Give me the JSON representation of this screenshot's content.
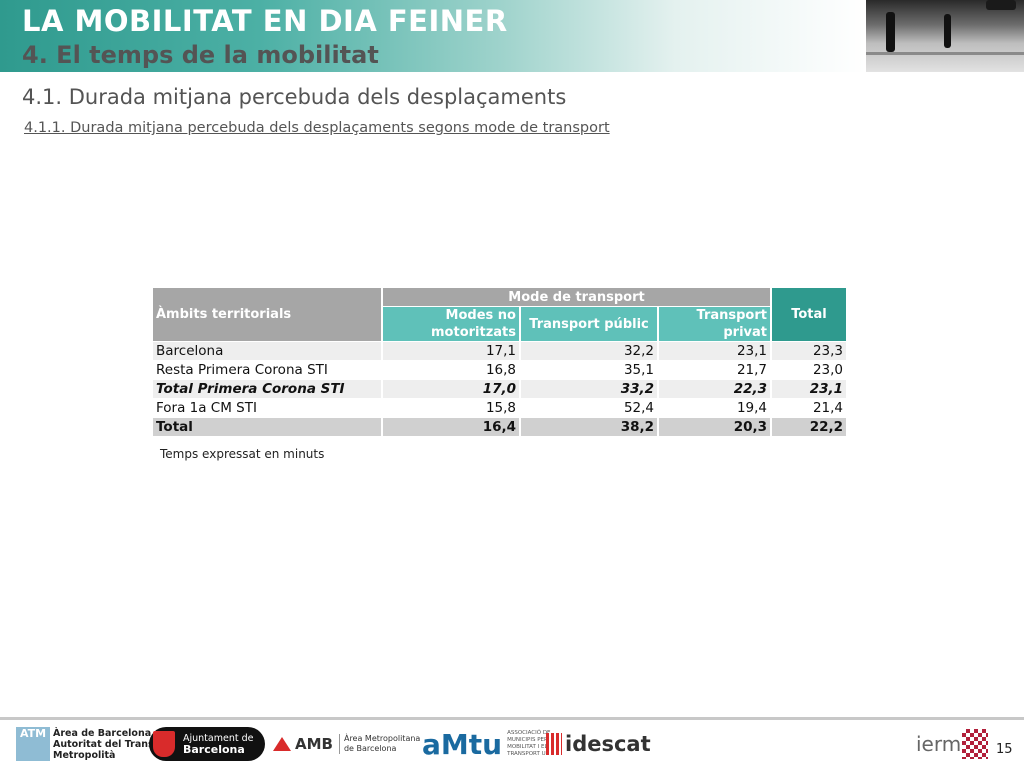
{
  "header": {
    "title": "LA MOBILITAT EN DIA FEINER",
    "subtitle": "4. El temps de la mobilitat"
  },
  "section_title": "4.1. Durada mitjana percebuda dels desplaçaments",
  "sub_title": "4.1.1. Durada mitjana percebuda dels desplaçaments segons mode de transport",
  "table": {
    "col_ambits": "Àmbits territorials",
    "col_group": "Mode de transport",
    "col_modes_no_motoritzats": "Modes no motoritzats",
    "col_transport_public": "Transport públic",
    "col_transport_privat": "Transport privat",
    "col_total": "Total",
    "rows": [
      {
        "label": "Barcelona",
        "v1": "17,1",
        "v2": "32,2",
        "v3": "23,1",
        "total": "23,3"
      },
      {
        "label": "Resta Primera Corona STI",
        "v1": "16,8",
        "v2": "35,1",
        "v3": "21,7",
        "total": "23,0"
      },
      {
        "label": "Total Primera Corona STI",
        "v1": "17,0",
        "v2": "33,2",
        "v3": "22,3",
        "total": "23,1"
      },
      {
        "label": "Fora 1a CM STI",
        "v1": "15,8",
        "v2": "52,4",
        "v3": "19,4",
        "total": "21,4"
      },
      {
        "label": "Total",
        "v1": "16,4",
        "v2": "38,2",
        "v3": "20,3",
        "total": "22,2"
      }
    ]
  },
  "note": "Temps expressat en minuts",
  "footer": {
    "atm_box": "ATM",
    "atm_line1": "Àrea de Barcelona",
    "atm_line2": "Autoritat del Transport",
    "atm_line3": "Metropolità",
    "bcn_line1": "Ajuntament de",
    "bcn_line2": "Barcelona",
    "amb": "AMB",
    "amb_line1": "Àrea Metropolitana",
    "amb_line2": "de Barcelona",
    "amtu": "aMtu",
    "amtu_small": "ASSOCIACIÓ DE MUNICIPIS PER LA MOBILITAT I EL TRANSPORT URBÀ",
    "idescat": "idescat",
    "iermb": "ierm",
    "page_number": "15"
  }
}
